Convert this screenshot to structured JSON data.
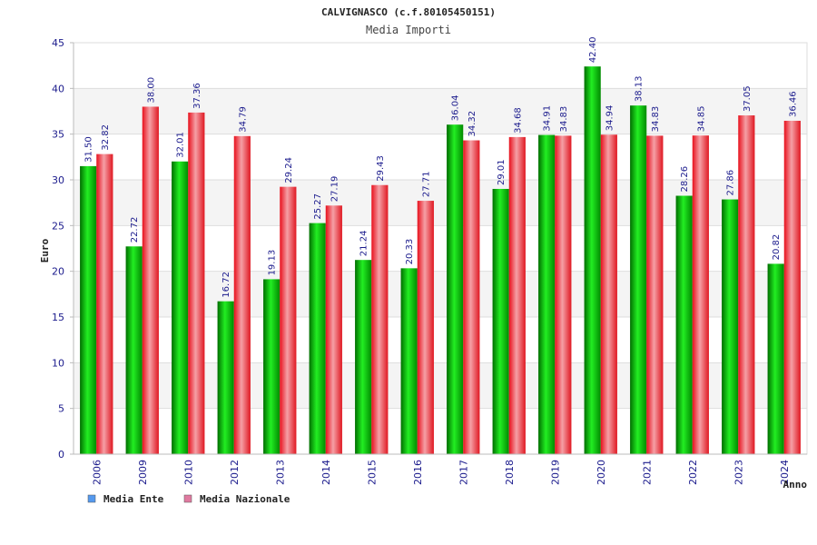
{
  "chart_data": {
    "type": "bar",
    "title": "CALVIGNASCO (c.f.80105450151)",
    "subtitle": "Media Importi",
    "xlabel": "Anno",
    "ylabel": "Euro",
    "ylim": [
      0,
      45
    ],
    "yticks": [
      0,
      5,
      10,
      15,
      20,
      25,
      30,
      35,
      40,
      45
    ],
    "grid": true,
    "legend_position": "bottom-left",
    "categories": [
      "2006",
      "2009",
      "2010",
      "2012",
      "2013",
      "2014",
      "2015",
      "2016",
      "2017",
      "2018",
      "2019",
      "2020",
      "2021",
      "2022",
      "2023",
      "2024"
    ],
    "series": [
      {
        "name": "Media Ente",
        "bar_color": "#11b011",
        "legend_color": "#5599ee",
        "values": [
          31.5,
          22.72,
          32.01,
          16.72,
          19.13,
          25.27,
          21.24,
          20.33,
          36.04,
          29.01,
          34.91,
          42.4,
          38.13,
          28.26,
          27.86,
          20.82
        ],
        "labels": [
          "31.50",
          "22.72",
          "32.01",
          "16.72",
          "19.13",
          "25.27",
          "21.24",
          "20.33",
          "36.04",
          "29.01",
          "34.91",
          "42.40",
          "38.13",
          "28.26",
          "27.86",
          "20.82"
        ]
      },
      {
        "name": "Media Nazionale",
        "bar_color": "#e8323c",
        "legend_color": "#e07aa0",
        "values": [
          32.82,
          38.0,
          37.36,
          34.79,
          29.24,
          27.19,
          29.43,
          27.71,
          34.32,
          34.68,
          34.83,
          34.94,
          34.83,
          34.85,
          37.05,
          36.46
        ],
        "labels": [
          "32.82",
          "38.00",
          "37.36",
          "34.79",
          "29.24",
          "27.19",
          "29.43",
          "27.71",
          "34.32",
          "34.68",
          "34.83",
          "34.94",
          "34.83",
          "34.85",
          "37.05",
          "36.46"
        ]
      }
    ]
  }
}
